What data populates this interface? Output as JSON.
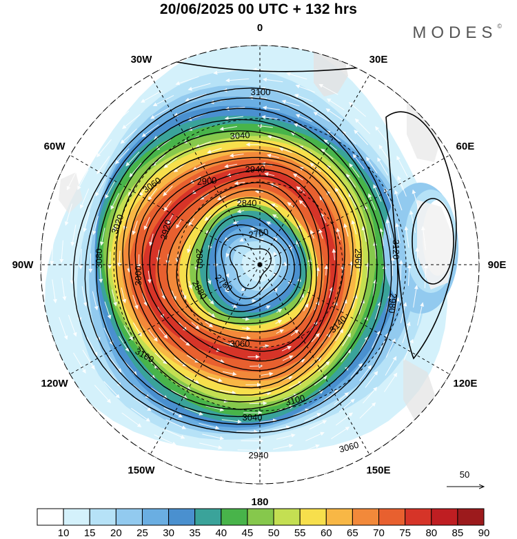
{
  "title": "20/06/2025  00 UTC  + 132 hrs",
  "brand": "MODES",
  "brand_mark": "©",
  "map": {
    "projection": "polar-stereographic-south",
    "longitude_labels": [
      {
        "text": "0",
        "lon": 0
      },
      {
        "text": "30E",
        "lon": 30
      },
      {
        "text": "60E",
        "lon": 60
      },
      {
        "text": "90E",
        "lon": 90
      },
      {
        "text": "120E",
        "lon": 120
      },
      {
        "text": "150E",
        "lon": 150
      },
      {
        "text": "180",
        "lon": 180
      },
      {
        "text": "150W",
        "lon": -150
      },
      {
        "text": "120W",
        "lon": -120
      },
      {
        "text": "90W",
        "lon": -90
      },
      {
        "text": "60W",
        "lon": -60
      },
      {
        "text": "30W",
        "lon": -30
      }
    ],
    "contour_labels": [
      "3100",
      "3040",
      "2940",
      "3060",
      "2900",
      "2840",
      "3020",
      "2920",
      "2760",
      "2800",
      "3080",
      "3000",
      "2960",
      "3120",
      "2780",
      "2880",
      "2980",
      "3140",
      "3060",
      "3100"
    ],
    "vector_reference": "50"
  },
  "colorbar": {
    "ticks": [
      "10",
      "15",
      "20",
      "25",
      "30",
      "35",
      "40",
      "45",
      "50",
      "55",
      "60",
      "65",
      "70",
      "75",
      "80",
      "85",
      "90"
    ],
    "colors": [
      "#ffffff",
      "#d4f1fb",
      "#b6e2f7",
      "#92caef",
      "#6aaee2",
      "#4a90cf",
      "#3aa39a",
      "#48b44a",
      "#86c84c",
      "#c4df52",
      "#f7df4c",
      "#f8b745",
      "#f2893a",
      "#e8602f",
      "#d63428",
      "#bf1e22",
      "#9c1a1c"
    ]
  }
}
